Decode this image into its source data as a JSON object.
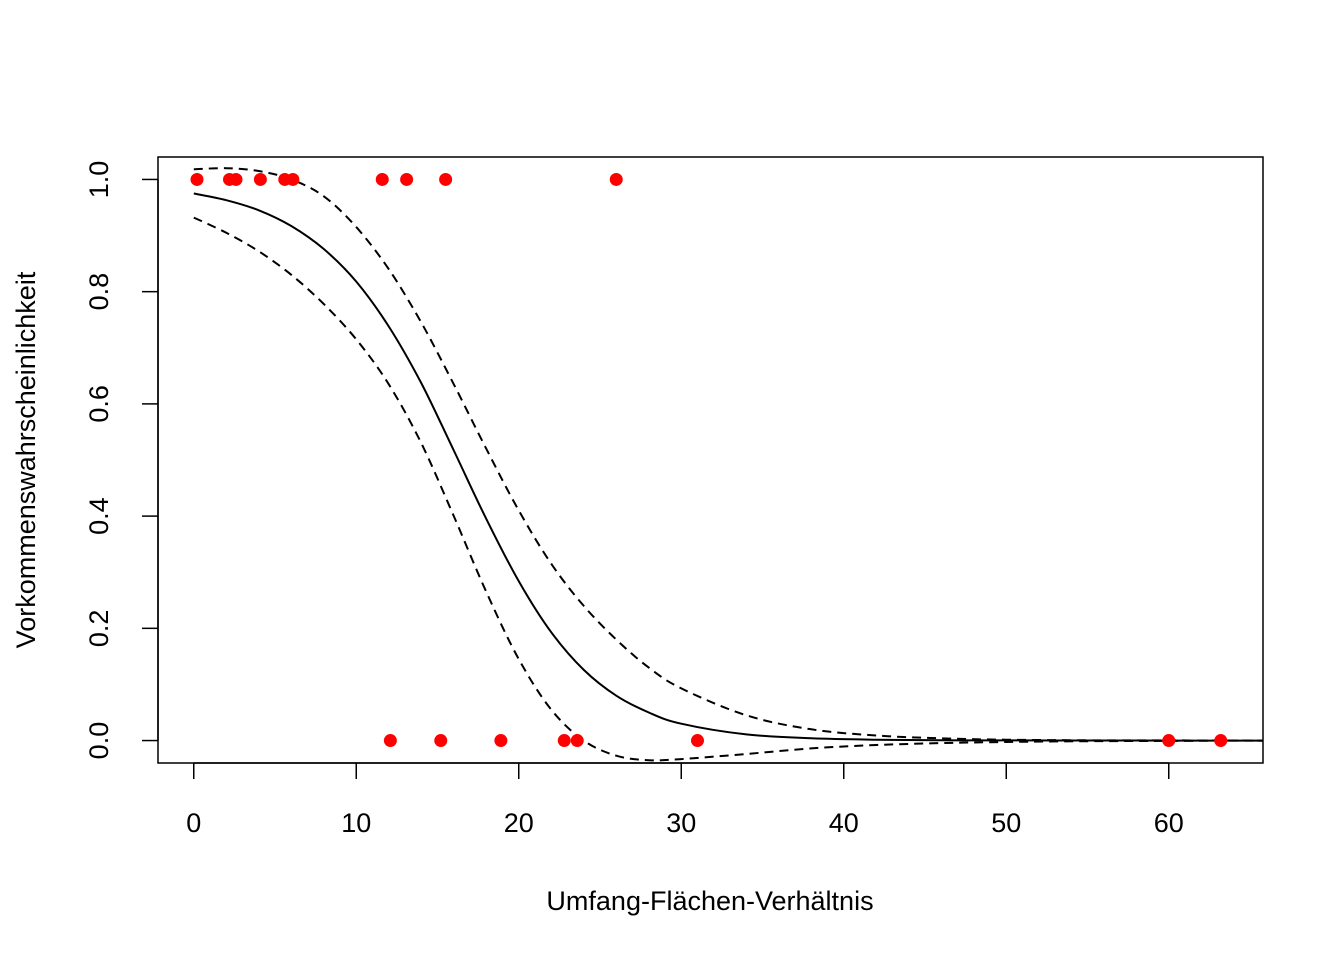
{
  "chart_data": {
    "type": "scatter",
    "xlabel": "Umfang-Flächen-Verhältnis",
    "ylabel": "Vorkommenswahrscheinlichkeit",
    "xlim": [
      -2.2,
      65.8
    ],
    "ylim": [
      -0.04,
      1.04
    ],
    "x_ticks": [
      0,
      10,
      20,
      30,
      40,
      50,
      60
    ],
    "y_ticks": [
      0.0,
      0.2,
      0.4,
      0.6,
      0.8,
      1.0
    ],
    "x_tick_labels": [
      "0",
      "10",
      "20",
      "30",
      "40",
      "50",
      "60"
    ],
    "y_tick_labels": [
      "0.0",
      "0.2",
      "0.4",
      "0.6",
      "0.8",
      "1.0"
    ],
    "grid": false,
    "points": [
      {
        "x": 0.2,
        "y": 1
      },
      {
        "x": 2.2,
        "y": 1
      },
      {
        "x": 2.6,
        "y": 1
      },
      {
        "x": 4.1,
        "y": 1
      },
      {
        "x": 5.6,
        "y": 1
      },
      {
        "x": 6.1,
        "y": 1
      },
      {
        "x": 11.6,
        "y": 1
      },
      {
        "x": 13.1,
        "y": 1
      },
      {
        "x": 15.5,
        "y": 1
      },
      {
        "x": 26.0,
        "y": 1
      },
      {
        "x": 12.1,
        "y": 0
      },
      {
        "x": 15.2,
        "y": 0
      },
      {
        "x": 18.9,
        "y": 0
      },
      {
        "x": 22.8,
        "y": 0
      },
      {
        "x": 23.6,
        "y": 0
      },
      {
        "x": 31.0,
        "y": 0
      },
      {
        "x": 60.0,
        "y": 0
      },
      {
        "x": 63.2,
        "y": 0
      }
    ],
    "fitted_curve": {
      "x": [
        0,
        2,
        4,
        6,
        8,
        10,
        12,
        14,
        16,
        18,
        20,
        22,
        24,
        26,
        28,
        30,
        34,
        38,
        42,
        46,
        50,
        55,
        60,
        65.8
      ],
      "y": [
        0.975,
        0.963,
        0.945,
        0.917,
        0.876,
        0.818,
        0.738,
        0.637,
        0.517,
        0.395,
        0.284,
        0.193,
        0.126,
        0.08,
        0.05,
        0.03,
        0.011,
        0.004,
        0.0015,
        0.0005,
        0.0002,
        0.0001,
        0.0,
        0.0
      ],
      "style": "solid",
      "color": "#000000"
    },
    "upper_band": {
      "x": [
        0,
        2,
        4,
        6,
        8,
        10,
        12,
        14,
        16,
        18,
        20,
        22,
        24,
        26,
        28,
        30,
        34,
        38,
        42,
        46,
        50,
        55,
        60,
        65.8
      ],
      "y": [
        1.018,
        1.02,
        1.015,
        1.0,
        0.97,
        0.915,
        0.84,
        0.745,
        0.635,
        0.52,
        0.41,
        0.315,
        0.24,
        0.18,
        0.13,
        0.093,
        0.045,
        0.02,
        0.009,
        0.004,
        0.0015,
        0.0005,
        0.0002,
        0.0
      ],
      "style": "dashed",
      "color": "#000000"
    },
    "lower_band": {
      "x": [
        0,
        2,
        4,
        6,
        8,
        10,
        12,
        14,
        16,
        18,
        20,
        22,
        24,
        26,
        28,
        30,
        34,
        38,
        42,
        46,
        50,
        55,
        60,
        65.8
      ],
      "y": [
        0.932,
        0.905,
        0.872,
        0.83,
        0.778,
        0.715,
        0.635,
        0.53,
        0.4,
        0.265,
        0.145,
        0.055,
        0.0,
        -0.027,
        -0.035,
        -0.033,
        -0.024,
        -0.014,
        -0.008,
        -0.0045,
        -0.0025,
        -0.0012,
        -0.0006,
        0.0
      ],
      "style": "dashed",
      "color": "#000000"
    },
    "point_color": "#ff0000"
  }
}
